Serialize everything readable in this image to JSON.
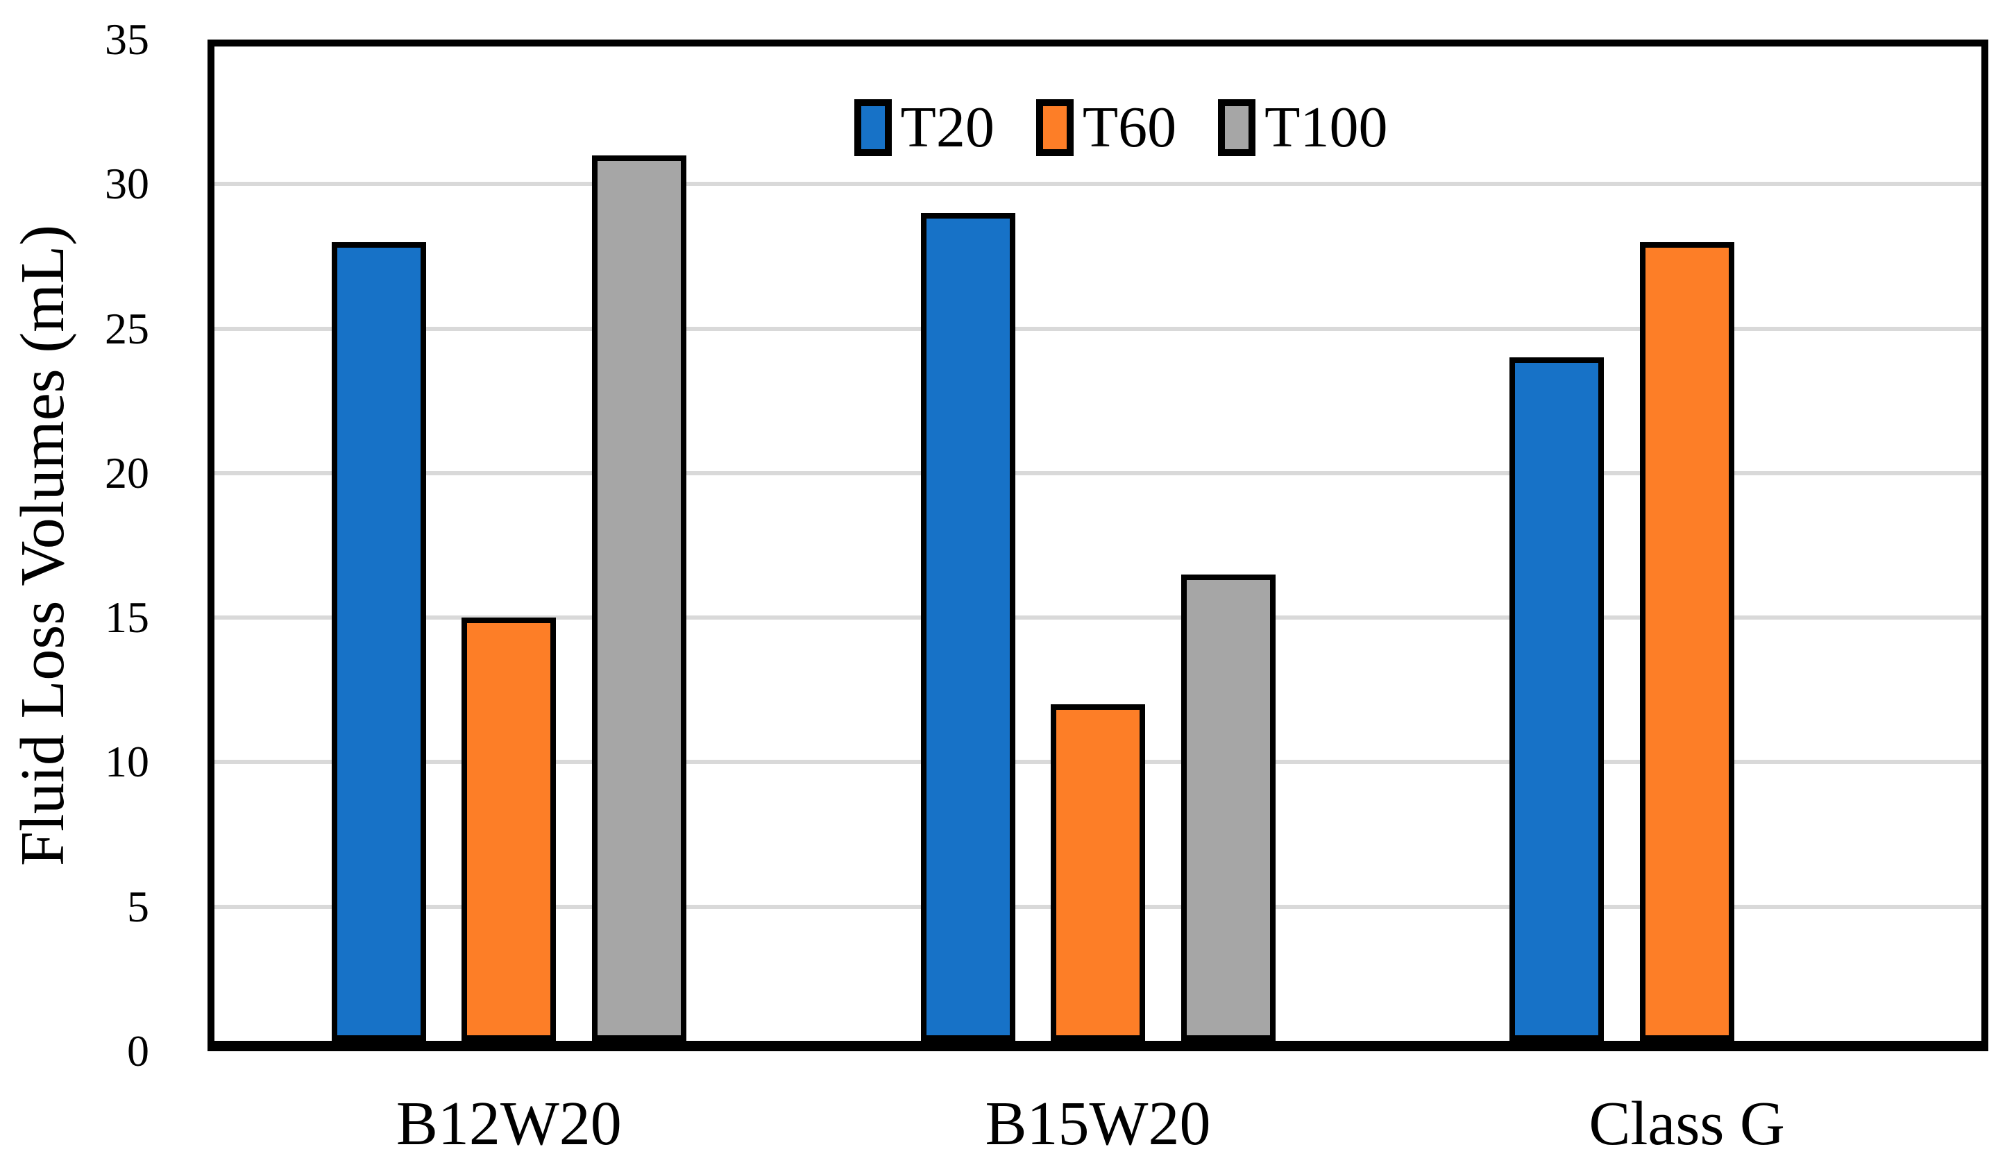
{
  "chart_data": {
    "type": "bar",
    "title": "",
    "categories": [
      "B12W20",
      "B15W20",
      "Class G"
    ],
    "series": [
      {
        "name": "T20",
        "color": "#1772C7",
        "values": [
          28,
          29,
          24
        ]
      },
      {
        "name": "T60",
        "color": "#FD7E27",
        "values": [
          15,
          12,
          28
        ]
      },
      {
        "name": "T100",
        "color": "#A6A6A6",
        "values": [
          31,
          16.5,
          null
        ]
      }
    ],
    "xlabel": "",
    "ylabel": "Fluid Loss Volumes (mL)",
    "ylim": [
      0,
      35
    ],
    "yticks": [
      0,
      5,
      10,
      15,
      20,
      25,
      30,
      35
    ],
    "grid": true,
    "legend_position": "top-center",
    "bar_border_color": "#000000",
    "gridline_color": "#D9D9D9",
    "axis_color": "#000000",
    "background_color": "#FFFFFF"
  }
}
